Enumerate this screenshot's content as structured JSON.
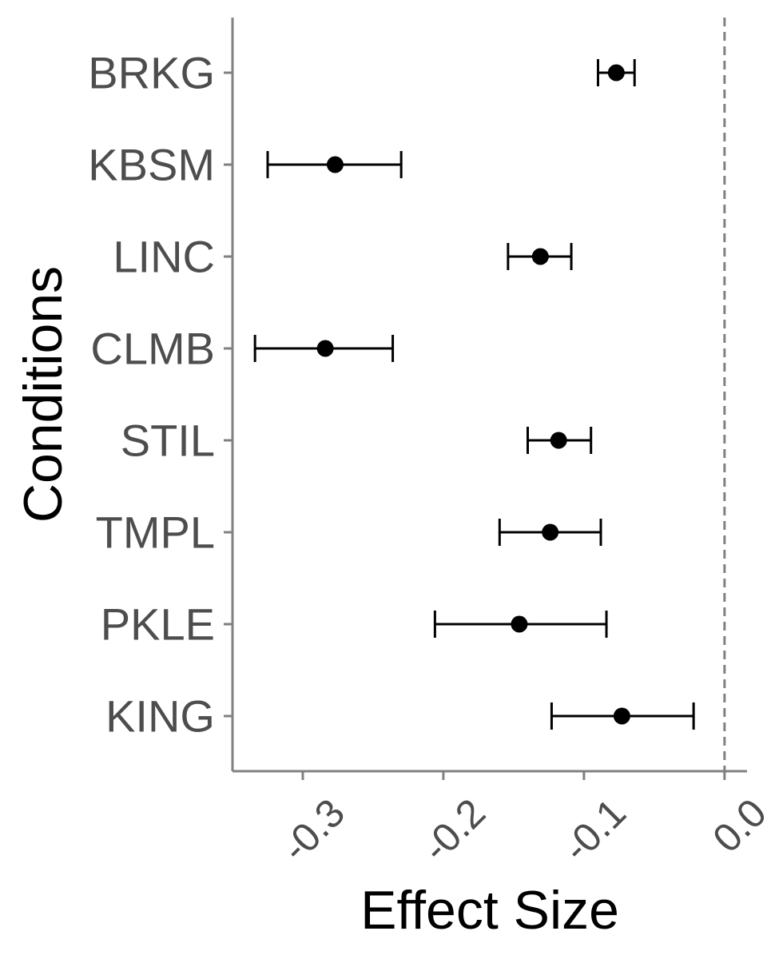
{
  "chart_data": {
    "type": "forest",
    "xlabel": "Effect Size",
    "ylabel": "Conditions",
    "xlim": [
      -0.35,
      0.016
    ],
    "x_ticks": [
      -0.3,
      -0.2,
      -0.1,
      0.0
    ],
    "x_tick_labels": [
      "-0.3",
      "-0.2",
      "-0.1",
      "0.0"
    ],
    "reference_line": 0.0,
    "grid": false,
    "categories": [
      "BRKG",
      "KBSM",
      "LINC",
      "CLMB",
      "STIL",
      "TMPL",
      "PKLE",
      "KING"
    ],
    "points": [
      {
        "label": "BRKG",
        "estimate": -0.077,
        "lower": -0.09,
        "upper": -0.064
      },
      {
        "label": "KBSM",
        "estimate": -0.277,
        "lower": -0.325,
        "upper": -0.23
      },
      {
        "label": "LINC",
        "estimate": -0.131,
        "lower": -0.154,
        "upper": -0.109
      },
      {
        "label": "CLMB",
        "estimate": -0.284,
        "lower": -0.334,
        "upper": -0.236
      },
      {
        "label": "STIL",
        "estimate": -0.118,
        "lower": -0.14,
        "upper": -0.095
      },
      {
        "label": "TMPL",
        "estimate": -0.124,
        "lower": -0.16,
        "upper": -0.088
      },
      {
        "label": "PKLE",
        "estimate": -0.146,
        "lower": -0.206,
        "upper": -0.084
      },
      {
        "label": "KING",
        "estimate": -0.073,
        "lower": -0.123,
        "upper": -0.022
      }
    ],
    "colors": {
      "points": "#000000",
      "axis": "#808080",
      "reference": "#808080",
      "text": "#4d4d4d"
    }
  }
}
